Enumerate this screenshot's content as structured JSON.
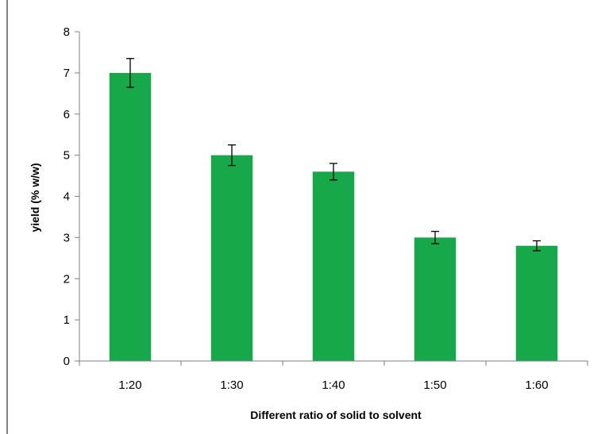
{
  "chart_data": {
    "type": "bar",
    "categories": [
      "1:20",
      "1:30",
      "1:40",
      "1:50",
      "1:60"
    ],
    "values": [
      7.0,
      5.0,
      4.6,
      3.0,
      2.8
    ],
    "errors": [
      0.35,
      0.25,
      0.2,
      0.15,
      0.12
    ],
    "title": "",
    "xlabel": "Different ratio of solid to solvent",
    "ylabel": "yield (% w/w)",
    "ylim": [
      0,
      8
    ],
    "yticks": [
      "0",
      "1",
      "2",
      "3",
      "4",
      "5",
      "6",
      "7",
      "8"
    ],
    "grid": false,
    "legend": "none",
    "colors": {
      "bar": "#17a84a",
      "axis": "#7f7f7f",
      "error_bar": "#000000",
      "border": "#000000"
    }
  }
}
